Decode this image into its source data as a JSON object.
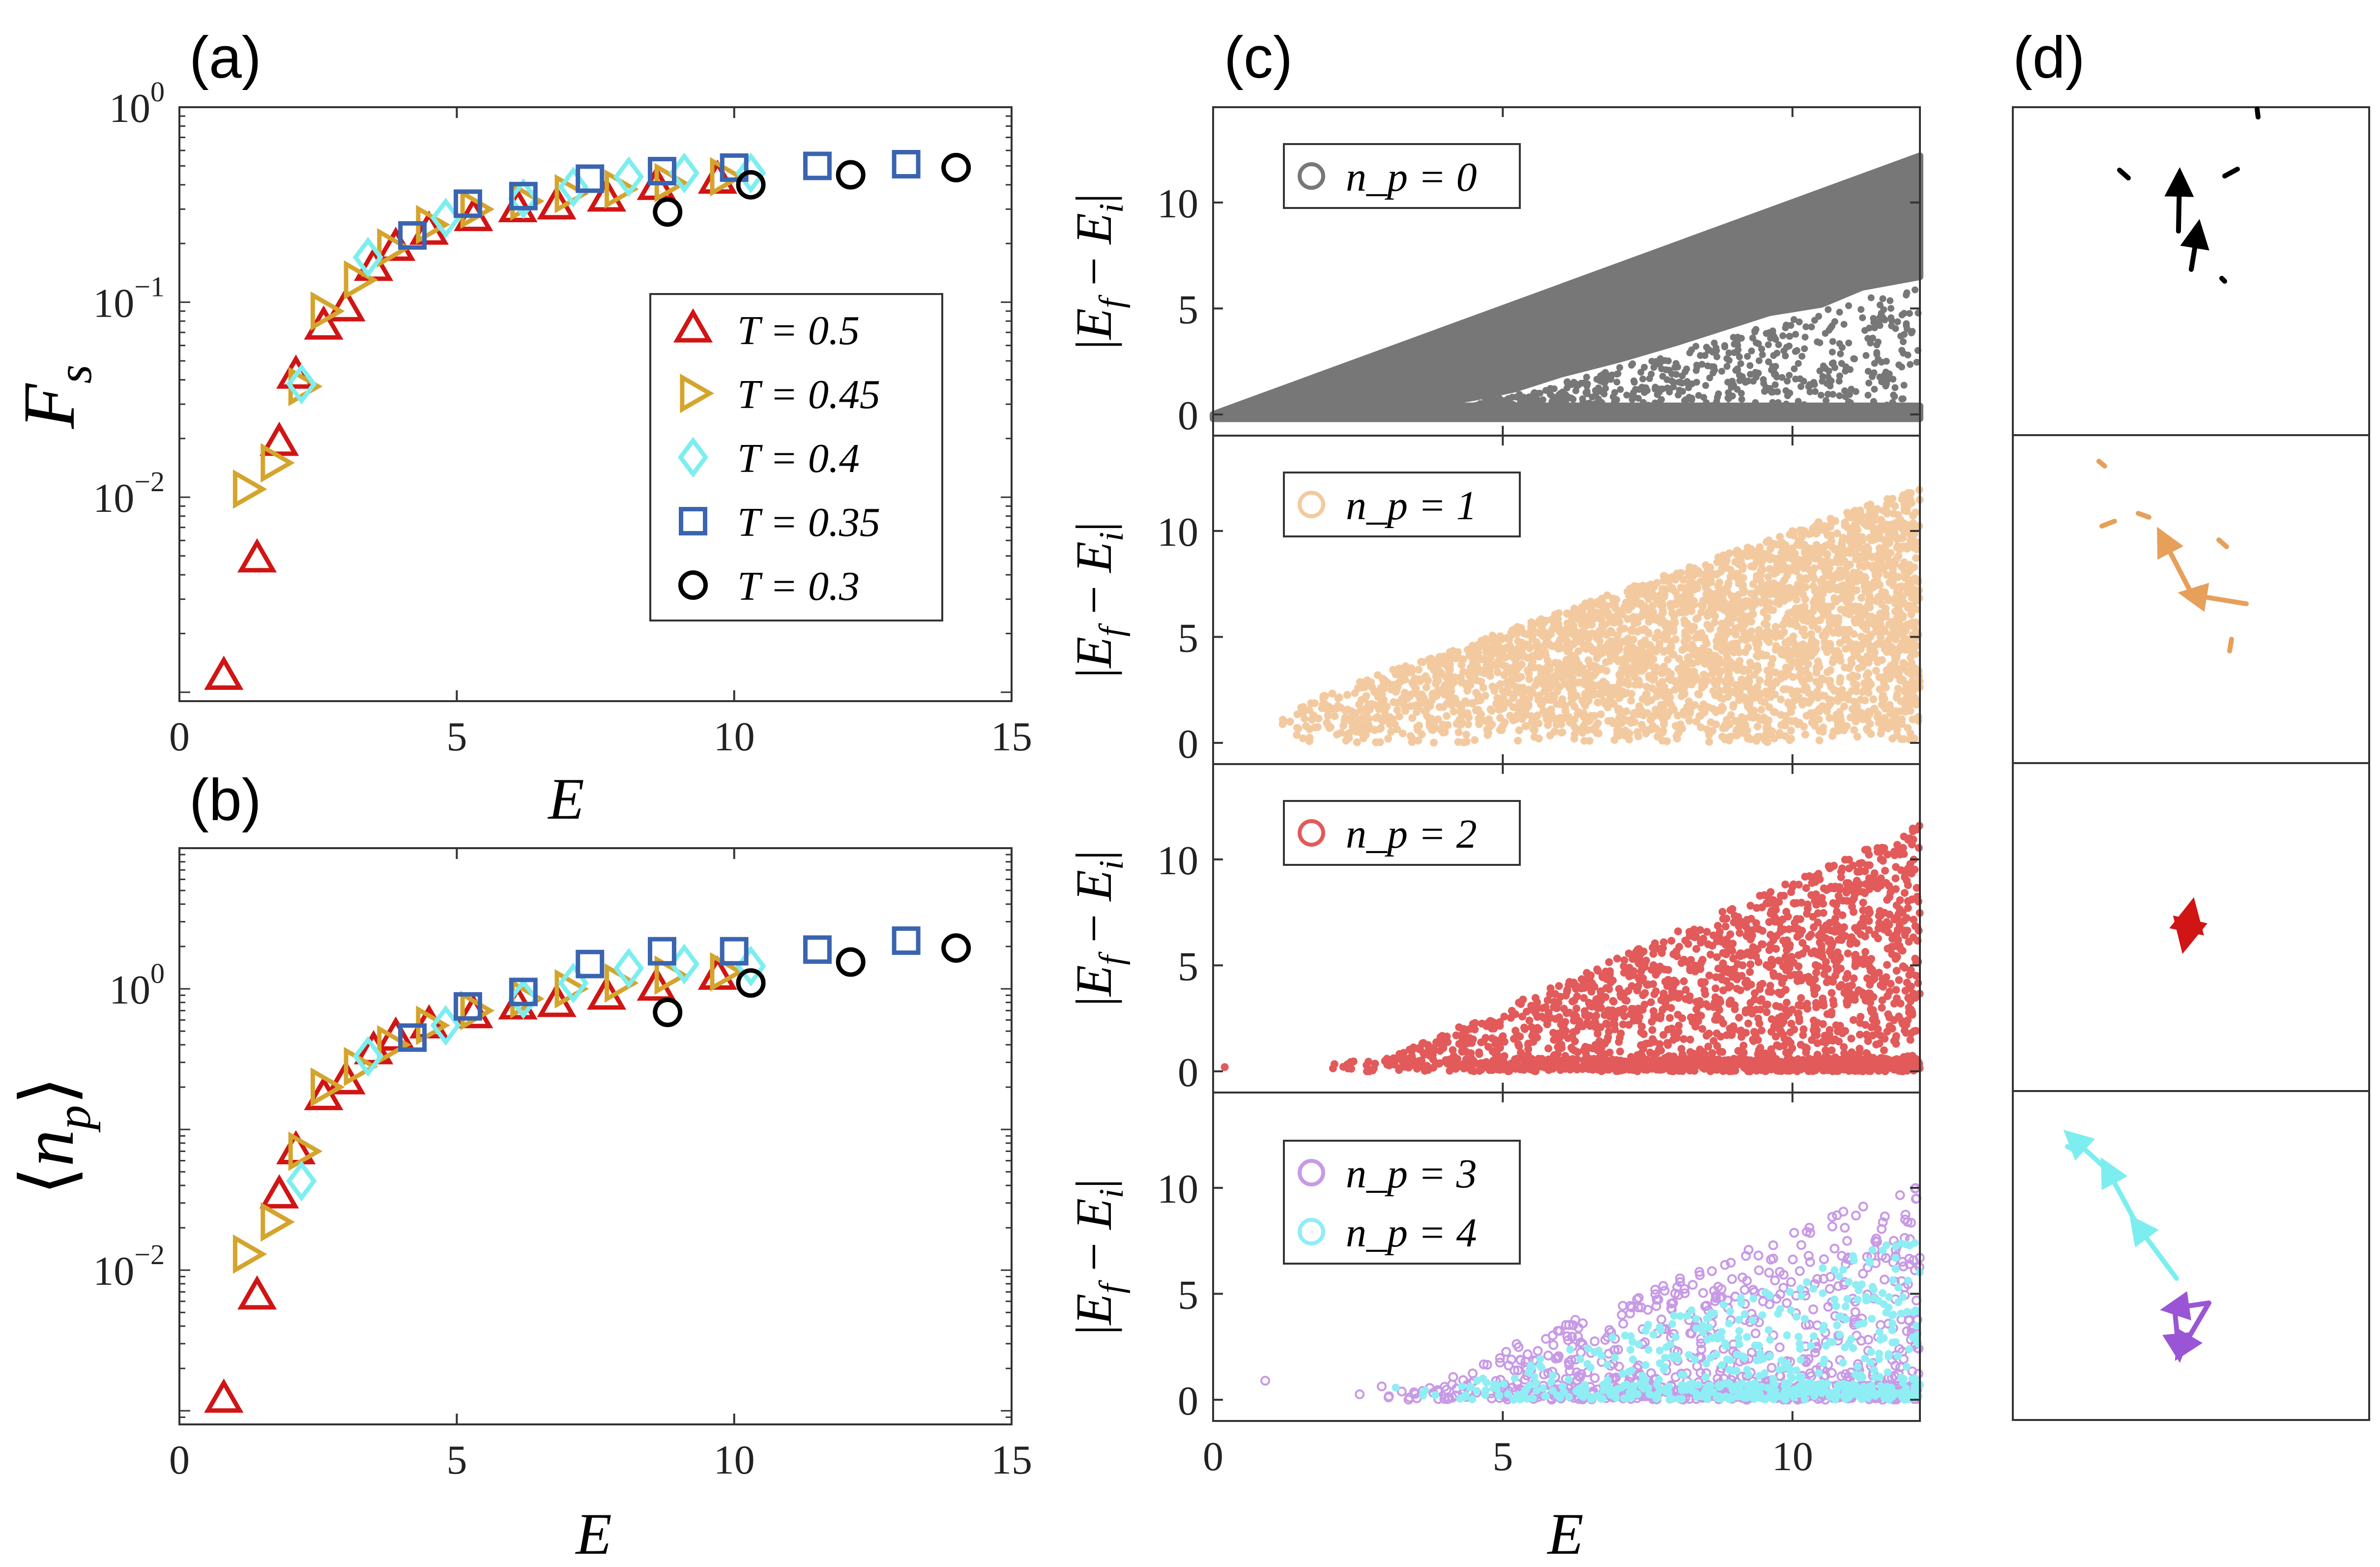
{
  "chart_data": [
    {
      "panel": "(a)",
      "type": "scatter",
      "xlabel": "E",
      "ylabel": "F_s",
      "xlim": [
        0,
        15
      ],
      "ylim": [
        0.0009,
        1.0
      ],
      "yscale": "log",
      "xticks": [
        0,
        5,
        10,
        15
      ],
      "yticks": [
        {
          "value": 1.0,
          "base": "10",
          "exp": "0"
        },
        {
          "value": 0.1,
          "base": "10",
          "exp": "−1"
        },
        {
          "value": 0.01,
          "base": "10",
          "exp": "−2"
        }
      ],
      "legend_position": "right",
      "series": [
        {
          "name": "T = 0.5",
          "marker": "triangle-up",
          "color": "#d11414",
          "x": [
            0.8,
            1.4,
            1.8,
            2.1,
            2.6,
            3.0,
            3.5,
            3.9,
            4.5,
            5.3,
            6.1,
            6.8,
            7.7,
            8.6,
            9.7
          ],
          "y": [
            0.0012,
            0.0048,
            0.019,
            0.042,
            0.075,
            0.093,
            0.15,
            0.19,
            0.23,
            0.27,
            0.3,
            0.31,
            0.34,
            0.39,
            0.42
          ]
        },
        {
          "name": "T = 0.45",
          "marker": "triangle-right",
          "color": "#d4a42c",
          "x": [
            1.2,
            1.7,
            2.2,
            2.6,
            3.2,
            3.8,
            4.5,
            5.3,
            6.2,
            7.0,
            7.9,
            8.8,
            9.8
          ],
          "y": [
            0.011,
            0.015,
            0.037,
            0.09,
            0.13,
            0.19,
            0.25,
            0.3,
            0.33,
            0.36,
            0.38,
            0.41,
            0.44
          ]
        },
        {
          "name": "T = 0.4",
          "marker": "diamond",
          "color": "#7deef0",
          "x": [
            2.2,
            3.4,
            4.8,
            6.2,
            7.1,
            8.1,
            9.1,
            10.3
          ],
          "y": [
            0.038,
            0.17,
            0.27,
            0.34,
            0.39,
            0.44,
            0.46,
            0.46
          ]
        },
        {
          "name": "T = 0.35",
          "marker": "square",
          "color": "#3a64b0",
          "x": [
            4.2,
            5.2,
            6.2,
            7.4,
            8.7,
            10.0,
            11.5,
            13.1
          ],
          "y": [
            0.22,
            0.32,
            0.35,
            0.43,
            0.47,
            0.49,
            0.5,
            0.51
          ]
        },
        {
          "name": "T = 0.3",
          "marker": "circle",
          "color": "#000000",
          "x": [
            8.8,
            10.3,
            12.1,
            14.0
          ],
          "y": [
            0.29,
            0.4,
            0.45,
            0.49
          ]
        }
      ]
    },
    {
      "panel": "(b)",
      "type": "scatter",
      "xlabel": "E",
      "ylabel": "⟨n_p⟩",
      "xlim": [
        0,
        15
      ],
      "ylim": [
        0.0008,
        10
      ],
      "yscale": "log",
      "xticks": [
        0,
        5,
        10,
        15
      ],
      "yticks": [
        {
          "value": 1.0,
          "base": "10",
          "exp": "0"
        },
        {
          "value": 0.01,
          "base": "10",
          "exp": "−2"
        }
      ],
      "series": [
        {
          "name": "T = 0.5",
          "marker": "triangle-up",
          "color": "#d11414",
          "x": [
            0.8,
            1.4,
            1.8,
            2.1,
            2.6,
            3.0,
            3.5,
            3.9,
            4.5,
            5.3,
            6.1,
            6.8,
            7.7,
            8.6,
            9.7
          ],
          "y": [
            0.0012,
            0.0065,
            0.034,
            0.07,
            0.17,
            0.22,
            0.36,
            0.45,
            0.55,
            0.65,
            0.75,
            0.78,
            0.88,
            1.02,
            1.22
          ]
        },
        {
          "name": "T = 0.45",
          "marker": "triangle-right",
          "color": "#d4a42c",
          "x": [
            1.2,
            1.7,
            2.2,
            2.6,
            3.2,
            3.8,
            4.5,
            5.3,
            6.2,
            7.0,
            7.9,
            8.8,
            9.8
          ],
          "y": [
            0.013,
            0.022,
            0.07,
            0.2,
            0.28,
            0.4,
            0.55,
            0.7,
            0.85,
            1.0,
            1.1,
            1.25,
            1.32
          ]
        },
        {
          "name": "T = 0.4",
          "marker": "diamond",
          "color": "#7deef0",
          "x": [
            2.2,
            3.4,
            4.8,
            6.2,
            7.1,
            8.1,
            9.1,
            10.3
          ],
          "y": [
            0.043,
            0.33,
            0.55,
            0.85,
            1.1,
            1.4,
            1.5,
            1.45
          ]
        },
        {
          "name": "T = 0.35",
          "marker": "square",
          "color": "#3a64b0",
          "x": [
            4.2,
            5.2,
            6.2,
            7.4,
            8.7,
            10.0,
            11.5,
            13.1
          ],
          "y": [
            0.45,
            0.75,
            0.95,
            1.5,
            1.85,
            1.85,
            1.9,
            2.2
          ]
        },
        {
          "name": "T = 0.3",
          "marker": "circle",
          "color": "#000000",
          "x": [
            8.8,
            10.3,
            12.1,
            14.0
          ],
          "y": [
            0.68,
            1.1,
            1.55,
            1.95
          ]
        }
      ]
    },
    {
      "panel": "(c)",
      "type": "scatter",
      "xlabel": "E",
      "xlim": [
        0,
        12.2
      ],
      "xticks": [
        0,
        5,
        10
      ],
      "subplots": [
        {
          "ylabel": "|E_f − E_i|",
          "ylim": [
            -1,
            14.5
          ],
          "yticks": [
            0,
            5,
            10
          ],
          "legend": [
            {
              "name": "n_p = 0",
              "color": "#777777"
            }
          ],
          "series": [
            {
              "name": "n_p = 0",
              "color": "#777777",
              "region": "dense wedge 0 ≤ |E_f − E_i| ≤ E, with sparse gaps near the lower edge for E > 5"
            }
          ]
        },
        {
          "ylabel": "|E_f − E_i|",
          "ylim": [
            -1,
            14.5
          ],
          "yticks": [
            0,
            5,
            10
          ],
          "legend": [
            {
              "name": "n_p = 1",
              "color": "#f3caa0"
            }
          ],
          "series": [
            {
              "name": "n_p = 1",
              "color": "#f3caa0",
              "region": "scattered points from E ≈ 1.1, upper envelope rising from 2 to 12"
            }
          ]
        },
        {
          "ylabel": "|E_f − E_i|",
          "ylim": [
            -1,
            14.5
          ],
          "yticks": [
            0,
            5,
            10
          ],
          "legend": [
            {
              "name": "n_p = 2",
              "color": "#e25a5a"
            }
          ],
          "series": [
            {
              "name": "n_p = 2",
              "color": "#e25a5a",
              "region": "points from E ≈ 2, dense at low values, upper envelope rising to 12"
            }
          ]
        },
        {
          "ylabel": "|E_f − E_i|",
          "ylim": [
            -1,
            14.5
          ],
          "yticks": [
            0,
            5,
            10
          ],
          "legend": [
            {
              "name": "n_p = 3",
              "color": "#c89ae6"
            },
            {
              "name": "n_p = 4",
              "color": "#8feef4"
            }
          ],
          "series": [
            {
              "name": "n_p = 3",
              "color": "#c89ae6",
              "region": "sparse points from E ≈ 1, upper envelope rising to ~11"
            },
            {
              "name": "n_p = 4",
              "color": "#8feef4",
              "region": "sparse points from E ≈ 3, mostly below 8"
            }
          ]
        }
      ]
    }
  ],
  "labels": {
    "a": "(a)",
    "b": "(b)",
    "c": "(c)",
    "d": "(d)",
    "x_label": "E",
    "fs_main": "F",
    "fs_sub": "s",
    "np_open": "⟨",
    "np_close": "⟩",
    "np_main": "n",
    "np_sub": "p",
    "abs_bar": "|",
    "abs_e": "E",
    "abs_f": "f",
    "abs_i": "i",
    "abs_minus": " − ",
    "legend_eq": " = "
  },
  "panel_d": {
    "rows": [
      {
        "color": "#000000",
        "desc": "particle displacement arrows, n_p = 0"
      },
      {
        "color": "#e6a05a",
        "desc": "particle displacement arrows, n_p = 1"
      },
      {
        "color": "#d11414",
        "desc": "particle displacement arrows, n_p = 2"
      },
      {
        "colors": [
          "#7deef0",
          "#9a55d6"
        ],
        "desc": "particle displacement arrows, n_p = 3 and 4"
      }
    ]
  }
}
